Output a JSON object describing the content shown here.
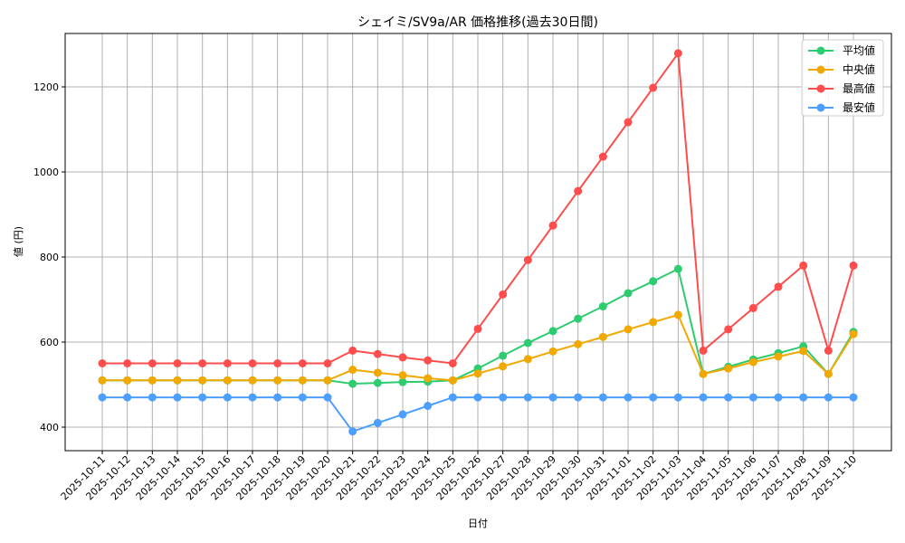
{
  "chart_data": {
    "type": "line",
    "title": "シェイミ/SV9a/AR 価格推移(過去30日間)",
    "xlabel": "日付",
    "ylabel": "値 (円)",
    "ylim": [
      345,
      1320
    ],
    "yticks": [
      400,
      600,
      800,
      1000,
      1200
    ],
    "grid": true,
    "legend_position": "upper right",
    "categories": [
      "2025-10-11",
      "2025-10-12",
      "2025-10-13",
      "2025-10-14",
      "2025-10-15",
      "2025-10-16",
      "2025-10-17",
      "2025-10-18",
      "2025-10-19",
      "2025-10-20",
      "2025-10-21",
      "2025-10-22",
      "2025-10-23",
      "2025-10-24",
      "2025-10-25",
      "2025-10-26",
      "2025-10-27",
      "2025-10-28",
      "2025-10-29",
      "2025-10-30",
      "2025-10-31",
      "2025-11-01",
      "2025-11-02",
      "2025-11-03",
      "2025-11-04",
      "2025-11-05",
      "2025-11-06",
      "2025-11-07",
      "2025-11-08",
      "2025-11-09",
      "2025-11-10"
    ],
    "series": [
      {
        "name": "平均値",
        "color": "#2ecc71",
        "values": [
          510,
          510,
          510,
          510,
          510,
          510,
          510,
          510,
          510,
          510,
          502,
          504,
          506,
          507,
          510,
          538,
          568,
          598,
          626,
          655,
          684,
          715,
          743,
          772,
          525,
          542,
          559,
          574,
          590,
          525,
          624
        ]
      },
      {
        "name": "中央値",
        "color": "#f1a800",
        "values": [
          510,
          510,
          510,
          510,
          510,
          510,
          510,
          510,
          510,
          510,
          535,
          528,
          522,
          515,
          510,
          526,
          543,
          560,
          578,
          595,
          612,
          630,
          647,
          664,
          525,
          538,
          553,
          566,
          579,
          525,
          619
        ]
      },
      {
        "name": "最高値",
        "color": "#ff4d4d",
        "values": [
          550,
          550,
          550,
          550,
          550,
          550,
          550,
          550,
          550,
          550,
          580,
          572,
          564,
          557,
          550,
          631,
          712,
          793,
          874,
          955,
          1036,
          1117,
          1198,
          1279,
          580,
          630,
          680,
          730,
          780,
          580,
          780
        ]
      },
      {
        "name": "最安値",
        "color": "#4d9fff",
        "values": [
          470,
          470,
          470,
          470,
          470,
          470,
          470,
          470,
          470,
          470,
          390,
          410,
          430,
          450,
          470,
          470,
          470,
          470,
          470,
          470,
          470,
          470,
          470,
          470,
          470,
          470,
          470,
          470,
          470,
          470,
          470
        ]
      }
    ]
  }
}
